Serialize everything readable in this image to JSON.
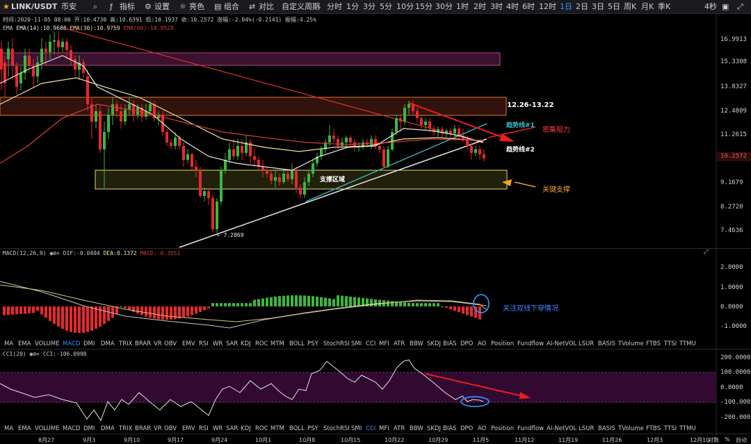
{
  "header": {
    "symbol": "LINK/USDT",
    "exchange": "币安",
    "menu": {
      "indicators": "指标",
      "settings": "设置",
      "theme": "亮色",
      "combo": "组合",
      "compare": "对比",
      "custom_period": "自定义周期"
    },
    "timeframes": [
      "分时",
      "1分",
      "3分",
      "5分",
      "10分",
      "15分",
      "30分",
      "1时",
      "2时",
      "3时",
      "4时",
      "6时",
      "12时",
      "1日",
      "2日",
      "3日",
      "5日",
      "周K",
      "月K",
      "季K"
    ],
    "active_timeframe": "1日",
    "countdown": "4秒"
  },
  "ohlc": {
    "time": "时间:2020-11-05 08:00",
    "open": "开:10.4730",
    "high": "高:10.6391",
    "low": "低:10.1937",
    "close": "收:10.2572",
    "change": "涨幅:-2.04%(-0.2141)",
    "amplitude": "振幅:4.25%"
  },
  "ema": {
    "name": "EMA",
    "ema14": "EMA(14):10.9688",
    "ema30": "EMA(30):10.9759",
    "ema60": "EMA(60):10.9528"
  },
  "price_axis": [
    "16.9913",
    "15.3308",
    "13.8327",
    "12.4809",
    "11.2615",
    "10.2572",
    "9.1679",
    "8.2720",
    "7.4636"
  ],
  "current_price": "10.2572",
  "low_marker": "7.2869",
  "annotations": {
    "zone_top": "12.26-13.22",
    "trend1": "趋势线#1",
    "resistance": "密集阻力",
    "trend2": "趋势线#2",
    "support_zone": "支撑区域",
    "key_support": "关键支撑",
    "macd_note": "关注双线下穿情况"
  },
  "macd": {
    "name": "MACD(12,26,9)",
    "dif": "DIF:-0.0404",
    "dea": "DEA:0.1372",
    "macd": "MACD:-0.3551",
    "axis": [
      "2.0000",
      "1.0000",
      "0.0000",
      "-1.0000"
    ]
  },
  "indicator_tabs": [
    "MA",
    "EMA",
    "VOLUME",
    "MACD",
    "DMI",
    "DMA",
    "TRIX",
    "BRAR",
    "VR",
    "OBV",
    "EMV",
    "RSI",
    "WR",
    "SAR",
    "KDJ",
    "ROC",
    "MTM",
    "BOLL",
    "PSY",
    "StochRSI",
    "SMI",
    "CCI",
    "MFI",
    "ATR",
    "BBW",
    "SKDJ",
    "BIAS",
    "DPO",
    "AO",
    "Position",
    "Fundflow",
    "AI-NetVOL",
    "LSUR",
    "BASIS",
    "TVolume",
    "FTBS",
    "TTSI",
    "TTMU"
  ],
  "indicator_tabs2": [
    "MA",
    "EMA",
    "VOLUME",
    "MACD",
    "DMI",
    "DMA",
    "TRIX",
    "BRAR",
    "VR",
    "OBV",
    "EMV",
    "RSI",
    "WR",
    "SAR",
    "KDJ",
    "ROC",
    "MTM",
    "BOLL",
    "PSY",
    "StochRSI",
    "SMI",
    "CCI",
    "MFI",
    "ATR",
    "BBW",
    "SKDJ",
    "BIAS",
    "DPO",
    "AO",
    "Position",
    "Fundflow",
    "AI-NetVOL",
    "LSUR",
    "BASIS",
    "TVolume",
    "FTBS",
    "TTSI",
    "TTMU"
  ],
  "cci": {
    "name": "CCI(20)",
    "value": "CCI:-106.0998",
    "axis": [
      "200.0000",
      "100.0000",
      "0.0000",
      "-100.0000",
      "-200.0000"
    ]
  },
  "dates": [
    "8月27",
    "9月3",
    "9月10",
    "9月17",
    "9月24",
    "10月1",
    "10月8",
    "10月15",
    "10月22",
    "10月29",
    "11月5",
    "11月12",
    "11月19",
    "11月26",
    "12月3",
    "12月10"
  ],
  "footer": {
    "log": "对数",
    "pct": "%",
    "auto": "自动"
  },
  "colors": {
    "up": "#3cb83c",
    "down": "#e8282b",
    "ema14": "#e8e8e8",
    "ema30": "#f3e3a0",
    "ema60": "#d63a3a",
    "accent": "#3d8bff"
  }
}
